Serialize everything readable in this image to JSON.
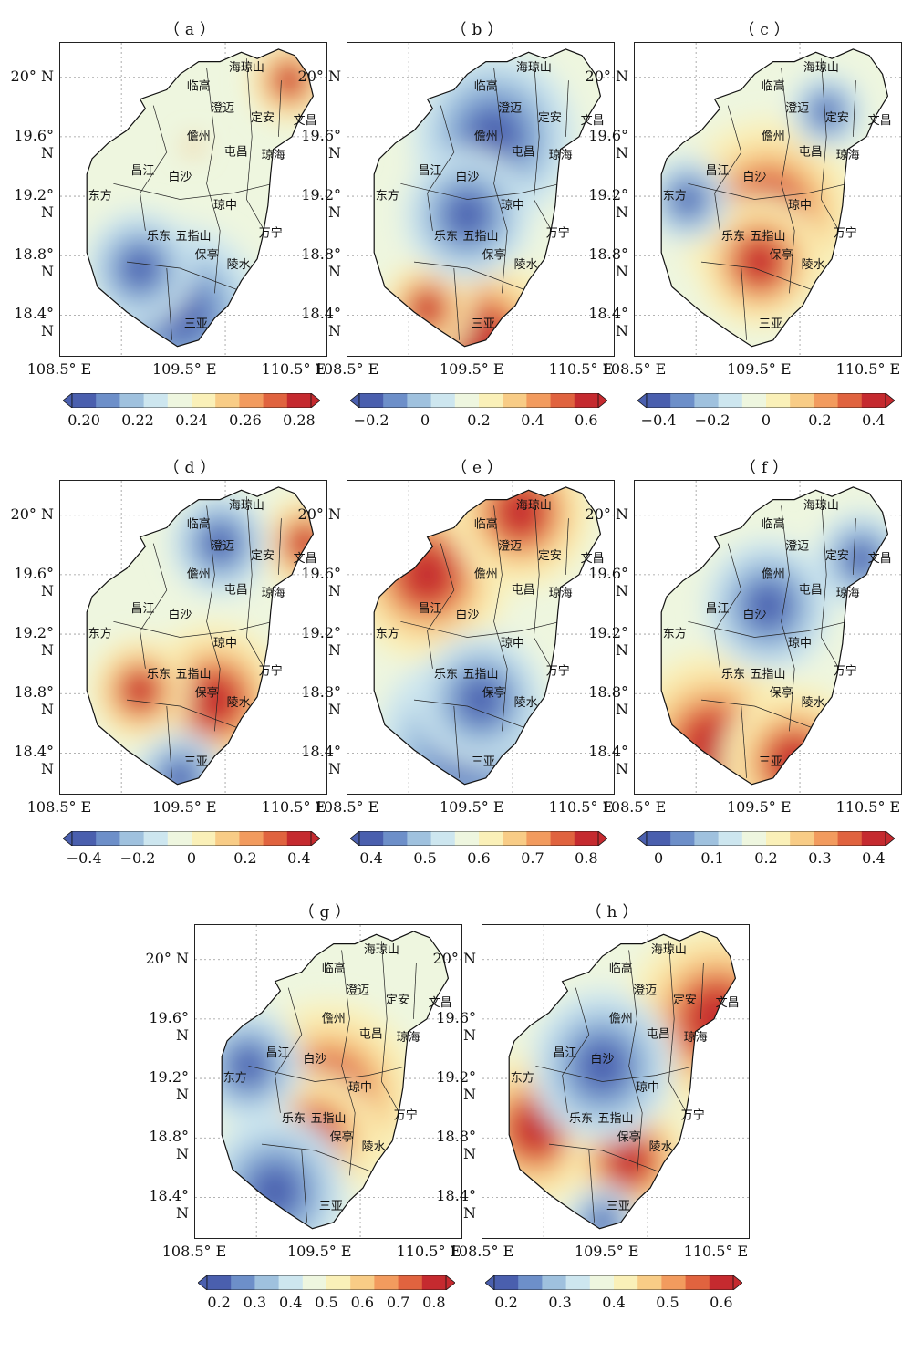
{
  "map_data": {
    "x_ticks": [
      "108.5° E",
      "109.5° E",
      "110.5° E"
    ],
    "y_ticks": [
      "20° N",
      "19.6° N",
      "19.2° N",
      "18.8° N",
      "18.4° N"
    ],
    "cities": [
      "海琼山",
      "临高",
      "澄迈",
      "定安",
      "文昌",
      "儋州",
      "琼海",
      "屯昌",
      "昌江",
      "白沙",
      "东方",
      "琼中",
      "万宁",
      "乐东",
      "五指山",
      "保亭",
      "陵水",
      "三亚"
    ],
    "colormap": [
      "#4a5fae",
      "#6d8fc9",
      "#9fc1de",
      "#cde6ef",
      "#eef6df",
      "#faf0b8",
      "#f8cc86",
      "#f29b5e",
      "#e0633f",
      "#c52a2f"
    ],
    "panels": [
      {
        "title": "（a）",
        "cbar_ticks": [
          "0.20",
          "0.22",
          "0.24",
          "0.26",
          "0.28"
        ],
        "hot": [
          [
            0.86,
            0.12,
            0.45
          ],
          [
            0.5,
            0.33,
            0.1
          ]
        ],
        "cold": [
          [
            0.45,
            0.86,
            0.9
          ],
          [
            0.3,
            0.72,
            0.6
          ]
        ]
      },
      {
        "title": "（b）",
        "cbar_ticks": [
          "−0.2",
          "0",
          "0.2",
          "0.4",
          "0.6"
        ],
        "hot": [
          [
            0.5,
            0.95,
            0.9
          ],
          [
            0.3,
            0.85,
            0.5
          ]
        ],
        "cold": [
          [
            0.55,
            0.3,
            0.9
          ],
          [
            0.45,
            0.55,
            0.7
          ]
        ]
      },
      {
        "title": "（c）",
        "cbar_ticks": [
          "−0.4",
          "−0.2",
          "0",
          "0.2",
          "0.4"
        ],
        "hot": [
          [
            0.5,
            0.55,
            1.0
          ],
          [
            0.47,
            0.7,
            0.7
          ]
        ],
        "cold": [
          [
            0.2,
            0.5,
            0.45
          ],
          [
            0.72,
            0.22,
            0.4
          ]
        ]
      },
      {
        "title": "（d）",
        "cbar_ticks": [
          "−0.4",
          "−0.2",
          "0",
          "0.2",
          "0.4"
        ],
        "hot": [
          [
            0.58,
            0.7,
            0.8
          ],
          [
            0.3,
            0.67,
            0.55
          ],
          [
            0.92,
            0.2,
            0.5
          ]
        ],
        "cold": [
          [
            0.6,
            0.2,
            0.55
          ],
          [
            0.45,
            0.95,
            0.5
          ]
        ]
      },
      {
        "title": "（e）",
        "cbar_ticks": [
          "0.4",
          "0.5",
          "0.6",
          "0.7",
          "0.8"
        ],
        "hot": [
          [
            0.3,
            0.3,
            0.9
          ],
          [
            0.65,
            0.1,
            0.8
          ]
        ],
        "cold": [
          [
            0.45,
            0.85,
            1.0
          ],
          [
            0.5,
            0.7,
            0.7
          ]
        ]
      },
      {
        "title": "（f）",
        "cbar_ticks": [
          "0",
          "0.1",
          "0.2",
          "0.3",
          "0.4"
        ],
        "hot": [
          [
            0.3,
            0.85,
            1.0
          ],
          [
            0.6,
            0.9,
            0.8
          ]
        ],
        "cold": [
          [
            0.5,
            0.4,
            0.7
          ],
          [
            0.85,
            0.25,
            0.5
          ]
        ]
      },
      {
        "title": "（g）",
        "cbar_ticks": [
          "0.2",
          "0.3",
          "0.4",
          "0.5",
          "0.6",
          "0.7",
          "0.8"
        ],
        "hot": [
          [
            0.5,
            0.55,
            1.0
          ],
          [
            0.45,
            0.68,
            0.7
          ]
        ],
        "cold": [
          [
            0.3,
            0.85,
            0.8
          ],
          [
            0.2,
            0.45,
            0.6
          ]
        ]
      },
      {
        "title": "（h）",
        "cbar_ticks": [
          "0.2",
          "0.3",
          "0.4",
          "0.5",
          "0.6"
        ],
        "hot": [
          [
            0.88,
            0.3,
            1.0
          ],
          [
            0.2,
            0.65,
            0.8
          ],
          [
            0.55,
            0.75,
            0.7
          ]
        ],
        "cold": [
          [
            0.45,
            0.45,
            0.8
          ],
          [
            0.45,
            0.95,
            0.4
          ]
        ]
      }
    ]
  }
}
